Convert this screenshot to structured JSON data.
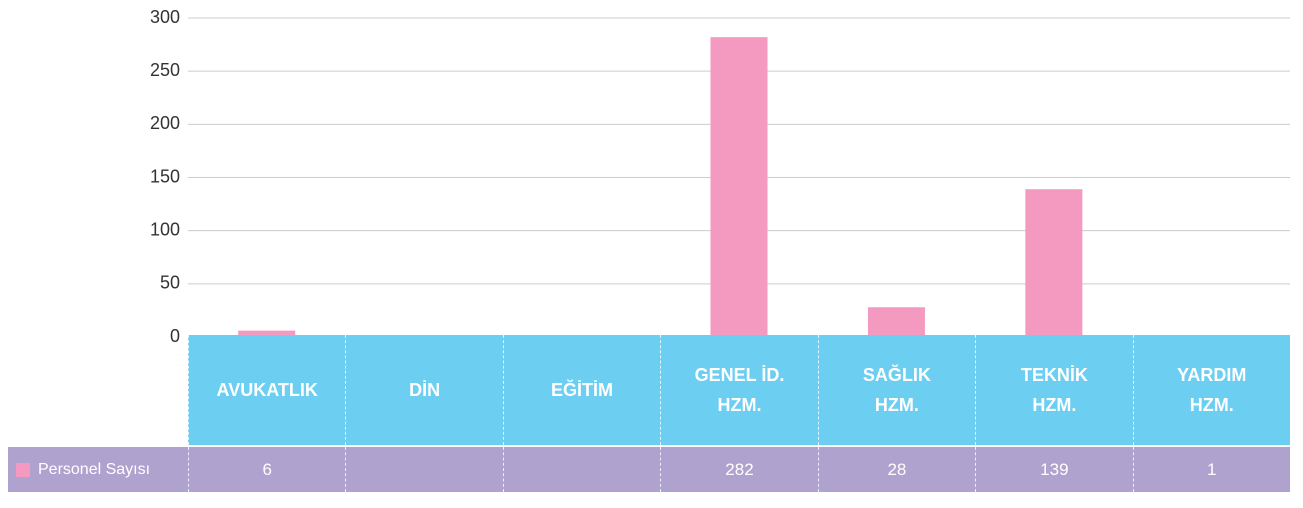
{
  "chart_data": {
    "type": "bar",
    "categories": [
      "AVUKATLIK",
      "DİN",
      "EĞİTİM",
      "GENEL İD. HZM.",
      "SAĞLIK HZM.",
      "TEKNİK HZM.",
      "YARDIM HZM."
    ],
    "series": [
      {
        "name": "Personel Sayısı",
        "color": "#f49ac1",
        "values": [
          6,
          null,
          null,
          282,
          28,
          139,
          1
        ]
      }
    ],
    "ylim": [
      0,
      300
    ],
    "yticks": [
      0,
      50,
      100,
      150,
      200,
      250,
      300
    ],
    "grid": true,
    "data_table": true,
    "header_color": "#6ccff2",
    "row_color": "#b0a2cf"
  }
}
